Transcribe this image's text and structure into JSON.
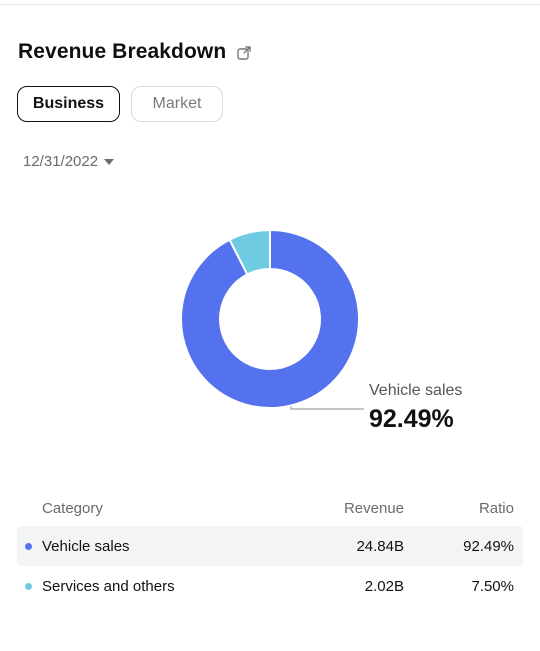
{
  "header": {
    "title": "Revenue Breakdown",
    "share_icon": "share-icon"
  },
  "tabs": [
    {
      "label": "Business",
      "active": true
    },
    {
      "label": "Market",
      "active": false
    }
  ],
  "date_select": {
    "value": "12/31/2022",
    "icon": "caret-down-icon"
  },
  "colors": {
    "vehicle_sales": "#5572EE",
    "services_and_others": "#6FCBE2"
  },
  "callout": {
    "name": "Vehicle sales",
    "value": "92.49%"
  },
  "table": {
    "headers": {
      "category": "Category",
      "revenue": "Revenue",
      "ratio": "Ratio"
    },
    "rows": [
      {
        "category": "Vehicle sales",
        "revenue": "24.84B",
        "ratio": "92.49%"
      },
      {
        "category": "Services and others",
        "revenue": "2.02B",
        "ratio": "7.50%"
      }
    ]
  },
  "chart_data": {
    "type": "pie",
    "donut": true,
    "categories": [
      "Vehicle sales",
      "Services and others"
    ],
    "values": [
      92.49,
      7.5
    ],
    "value_unit": "%",
    "colors": [
      "#5572EE",
      "#6FCBE2"
    ]
  }
}
